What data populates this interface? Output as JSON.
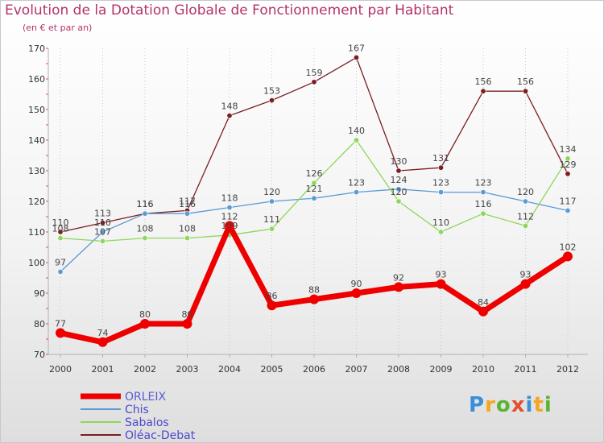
{
  "title": "Evolution de la Dotation Globale de Fonctionnement par Habitant",
  "subtitle": "(en € et par an)",
  "logo": {
    "text": "Proxiti",
    "colors": [
      "#f5a623",
      "#3a8fd8",
      "#5bb533",
      "#e2502c"
    ]
  },
  "chart_data": {
    "type": "line",
    "title": "Evolution de la Dotation Globale de Fonctionnement par Habitant",
    "subtitle": "(en € et par an)",
    "x": [
      "2000",
      "2001",
      "2002",
      "2003",
      "2004",
      "2005",
      "2006",
      "2007",
      "2008",
      "2009",
      "2010",
      "2011",
      "2012"
    ],
    "ylim": [
      70,
      170
    ],
    "yticks": [
      70,
      80,
      90,
      100,
      110,
      120,
      130,
      140,
      150,
      160,
      170
    ],
    "grid": "vertical-dotted",
    "legend_position": "bottom-left",
    "series": [
      {
        "name": "ORLEIX",
        "color": "#ee0000",
        "values": [
          77,
          74,
          80,
          80,
          112,
          86,
          88,
          90,
          92,
          93,
          84,
          93,
          102
        ]
      },
      {
        "name": "Chis",
        "color": "#5b9bd5",
        "values": [
          97,
          110,
          116,
          116,
          118,
          120,
          121,
          123,
          124,
          123,
          123,
          120,
          117
        ]
      },
      {
        "name": "Sabalos",
        "color": "#8fd65a",
        "values": [
          108,
          107,
          108,
          108,
          109,
          111,
          126,
          140,
          120,
          110,
          116,
          112,
          134
        ]
      },
      {
        "name": "Oléac-Debat",
        "color": "#7a1f22",
        "values": [
          110,
          113,
          116,
          117,
          148,
          153,
          159,
          167,
          130,
          131,
          156,
          156,
          129
        ]
      }
    ]
  }
}
